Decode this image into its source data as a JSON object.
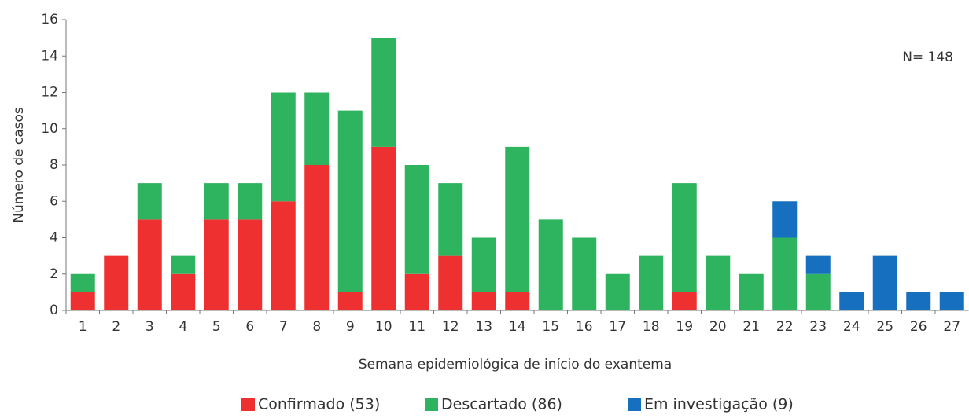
{
  "chart_data": {
    "type": "stacked_bar",
    "annotation": "N= 148",
    "x_label": "Semana  epidemiológica de início do exantema",
    "y_label": "Número de casos",
    "categories": [
      "1",
      "2",
      "3",
      "4",
      "5",
      "6",
      "7",
      "8",
      "9",
      "10",
      "11",
      "12",
      "13",
      "14",
      "15",
      "16",
      "17",
      "18",
      "19",
      "20",
      "21",
      "22",
      "23",
      "24",
      "25",
      "26",
      "27"
    ],
    "series": [
      {
        "name": "Confirmado  (53)",
        "color": "#ee3130",
        "values": [
          1,
          3,
          5,
          2,
          5,
          5,
          6,
          8,
          1,
          9,
          2,
          3,
          1,
          1,
          0,
          0,
          0,
          0,
          1,
          0,
          0,
          0,
          0,
          0,
          0,
          0,
          0
        ]
      },
      {
        "name": "Descartado (86)",
        "color": "#2eb35e",
        "values": [
          1,
          0,
          2,
          1,
          2,
          2,
          6,
          4,
          10,
          6,
          6,
          4,
          3,
          8,
          5,
          4,
          2,
          3,
          6,
          3,
          2,
          4,
          2,
          0,
          0,
          0,
          0
        ]
      },
      {
        "name": "Em investigação  (9)",
        "color": "#1670bf",
        "values": [
          0,
          0,
          0,
          0,
          0,
          0,
          0,
          0,
          0,
          0,
          0,
          0,
          0,
          0,
          0,
          0,
          0,
          0,
          0,
          0,
          0,
          2,
          1,
          1,
          3,
          1,
          1
        ]
      }
    ],
    "ylim": [
      0,
      16
    ],
    "yticks": [
      0,
      2,
      4,
      6,
      8,
      10,
      12,
      14,
      16
    ]
  }
}
